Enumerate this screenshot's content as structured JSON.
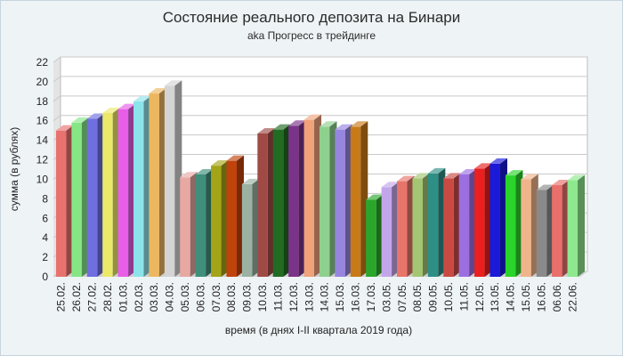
{
  "chart_data": {
    "type": "bar",
    "title": "Состояние реального депозита на Бинари",
    "subtitle": "aka Прогресс в трейдинге",
    "xlabel": "время (в днях I-II квартала 2019 года)",
    "ylabel": "сумма (в рублях)",
    "ylim": [
      0,
      22
    ],
    "yticks": [
      0,
      2,
      4,
      6,
      8,
      10,
      12,
      14,
      16,
      18,
      20,
      22
    ],
    "grid": true,
    "legend": "none",
    "categories": [
      "25.02.",
      "26.02.",
      "27.02.",
      "28.02.",
      "01.03.",
      "02.03.",
      "03.03.",
      "04.03.",
      "05.03.",
      "06.03.",
      "07.03.",
      "08.03.",
      "09.03.",
      "10.03.",
      "11.03.",
      "12.03.",
      "13.03.",
      "14.03.",
      "15.03.",
      "16.03.",
      "17.03.",
      "03.05.",
      "07.05.",
      "08.05.",
      "09.05.",
      "10.05.",
      "11.05.",
      "12.05.",
      "13.05.",
      "14.05.",
      "15.05.",
      "16.05.",
      "06.06.",
      "22.06."
    ],
    "values": [
      15.0,
      15.8,
      16.2,
      16.8,
      17.2,
      18.0,
      18.8,
      19.6,
      10.2,
      10.5,
      11.4,
      11.9,
      9.5,
      14.7,
      15.1,
      15.5,
      16.1,
      15.4,
      15.1,
      15.4,
      7.9,
      9.2,
      9.8,
      10.1,
      10.6,
      10.1,
      10.5,
      11.1,
      11.6,
      10.4,
      10.0,
      8.9,
      9.4,
      9.9
    ],
    "colors": [
      "#e8726e",
      "#86e686",
      "#6f6fe0",
      "#ece86a",
      "#e85ee8",
      "#8ce4ea",
      "#edb760",
      "#d4d4d4",
      "#e8a8a2",
      "#3f8f7c",
      "#a4a418",
      "#c0430c",
      "#9bb2a3",
      "#a04a46",
      "#226b22",
      "#7b3389",
      "#f0a27a",
      "#8ed08e",
      "#9686e0",
      "#c97a18",
      "#2aa72a",
      "#c3a6ea",
      "#e8756a",
      "#a4c673",
      "#2e8f86",
      "#c94a43",
      "#9b6fe0",
      "#ea1f1f",
      "#1a1ad8",
      "#2ad42a",
      "#f0b48a",
      "#8a8a8a",
      "#e86f6a",
      "#8ee88e"
    ]
  }
}
